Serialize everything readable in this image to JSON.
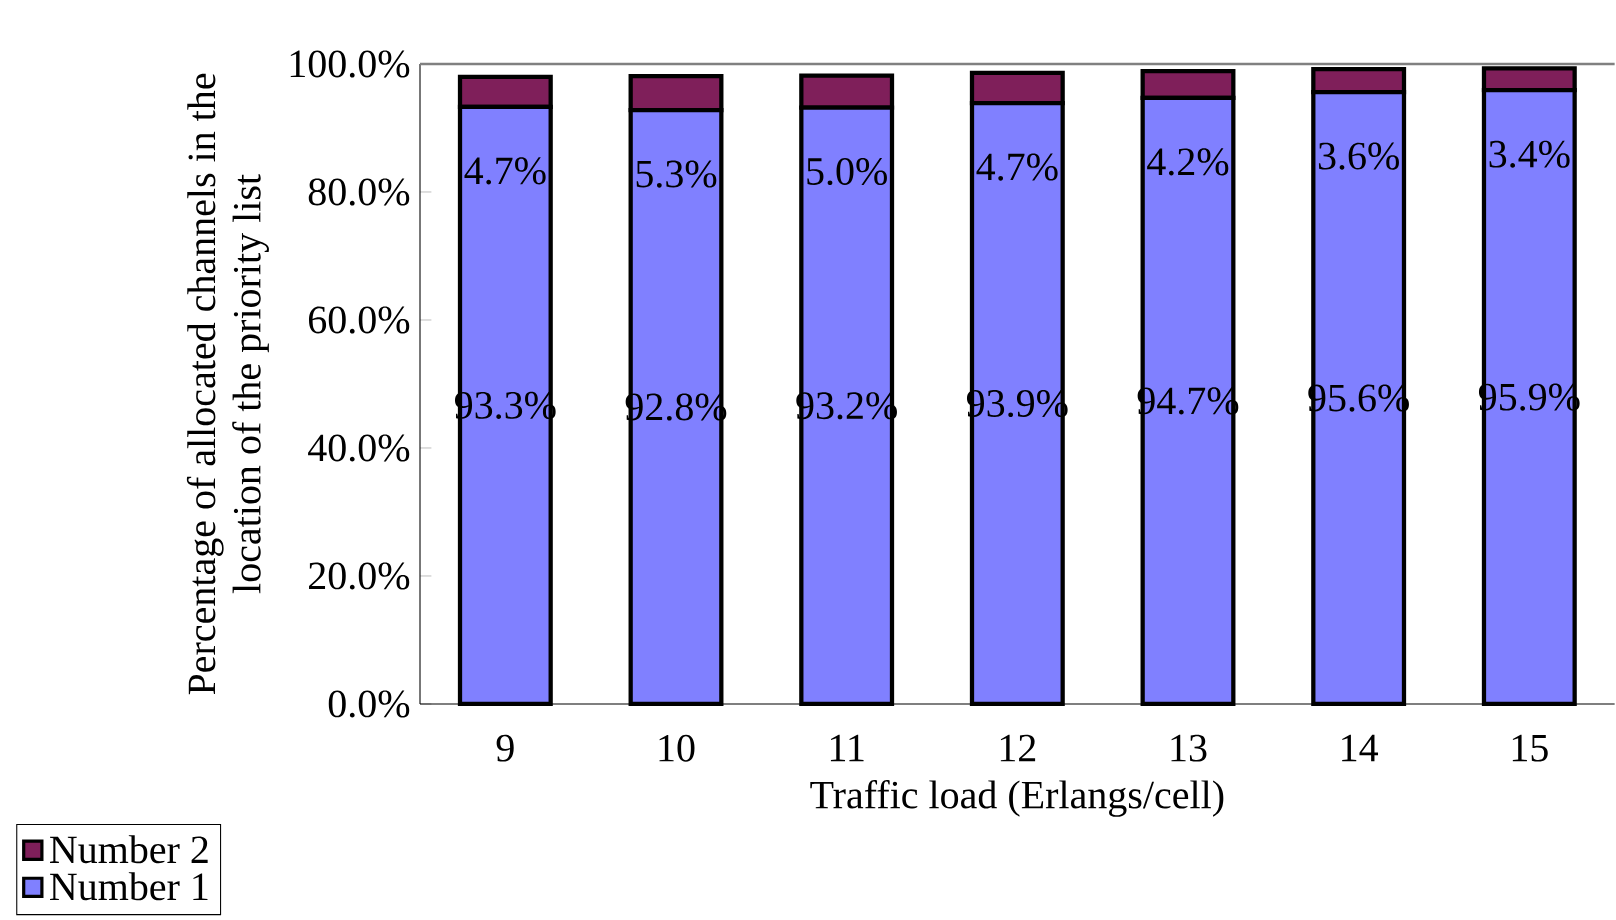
{
  "chart_data": {
    "type": "bar",
    "stacked": true,
    "xlabel": "Traffic load (Erlangs/cell)",
    "ylabel": "Percentage of allocated channels in the location of the priority list",
    "categories": [
      "9",
      "10",
      "11",
      "12",
      "13",
      "14",
      "15"
    ],
    "series": [
      {
        "name": "Number 1",
        "color": "#8080ff",
        "values": [
          93.3,
          92.8,
          93.2,
          93.9,
          94.7,
          95.6,
          95.9
        ],
        "value_labels": [
          "93.3%",
          "92.8%",
          "93.2%",
          "93.9%",
          "94.7%",
          "95.6%",
          "95.9%"
        ]
      },
      {
        "name": "Number 2",
        "color": "#7f1f5a",
        "values": [
          4.7,
          5.3,
          5.0,
          4.7,
          4.2,
          3.6,
          3.4
        ],
        "value_labels": [
          "4.7%",
          "5.3%",
          "5.0%",
          "4.7%",
          "4.2%",
          "3.6%",
          "3.4%"
        ]
      }
    ],
    "ylim": [
      0,
      100
    ],
    "yticks": [
      {
        "value": 0,
        "label": "0.0%"
      },
      {
        "value": 20,
        "label": "20.0%"
      },
      {
        "value": 40,
        "label": "40.0%"
      },
      {
        "value": 60,
        "label": "60.0%"
      },
      {
        "value": 80,
        "label": "80.0%"
      },
      {
        "value": 100,
        "label": "100.0%"
      }
    ],
    "grid": false,
    "legend": "bottom left"
  }
}
